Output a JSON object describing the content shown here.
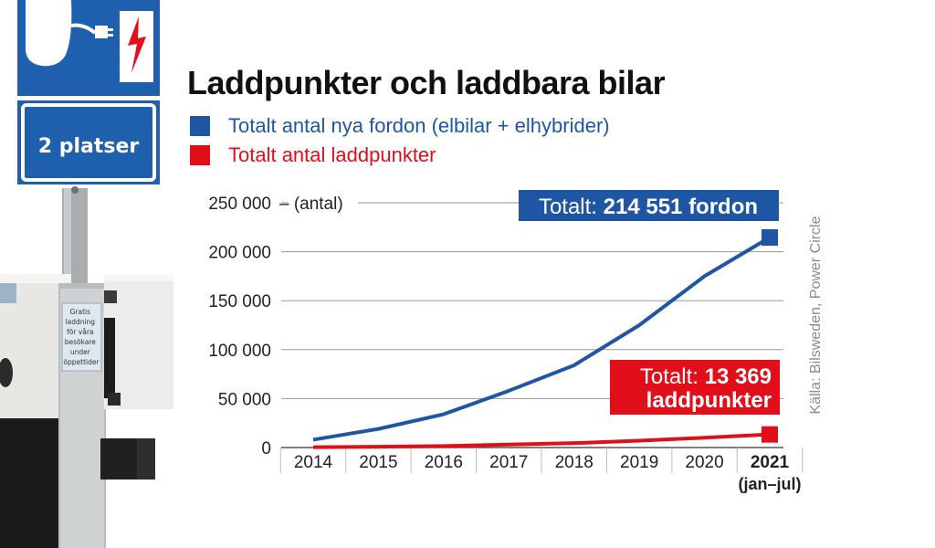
{
  "title": "Laddpunkter och laddbara bilar",
  "sign": {
    "spaces_text": "2 platser",
    "charger_sticker_lines": [
      "Gratis",
      "laddning",
      "för våra",
      "besökare",
      "under",
      "öppettider"
    ]
  },
  "legend": [
    {
      "label": "Totalt antal nya fordon (elbilar + elhybrider)",
      "color": "#1f56a3"
    },
    {
      "label": "Totalt antal laddpunkter",
      "color": "#e10f1a"
    }
  ],
  "source": "Källa: Bilsweden, Power Circle",
  "annotations": {
    "vehicles": {
      "prefix": "Totalt:",
      "value": "214 551 fordon",
      "color": "#1f56a3"
    },
    "chargers": {
      "prefix": "Totalt:",
      "value": "13 369",
      "line2": "laddpunkter",
      "color": "#e10f1a"
    }
  },
  "chart_data": {
    "type": "line",
    "x": [
      "2014",
      "2015",
      "2016",
      "2017",
      "2018",
      "2019",
      "2020",
      "2021"
    ],
    "x_sublabel_last": "(jan–jul)",
    "y_unit_label": "– (antal)",
    "ylim": [
      0,
      250000
    ],
    "yticks": [
      0,
      50000,
      100000,
      150000,
      200000,
      250000
    ],
    "ytick_labels": [
      "0",
      "50 000",
      "100 000",
      "150 000",
      "200 000",
      "250 000"
    ],
    "grid": true,
    "series": [
      {
        "name": "Totalt antal nya fordon (elbilar + elhybrider)",
        "color": "#1f56a3",
        "values": [
          8000,
          19000,
          34000,
          58000,
          84000,
          125000,
          175000,
          214551
        ]
      },
      {
        "name": "Totalt antal laddpunkter",
        "color": "#e10f1a",
        "values": [
          300,
          800,
          1500,
          3000,
          4500,
          7000,
          10000,
          13369
        ]
      }
    ]
  }
}
